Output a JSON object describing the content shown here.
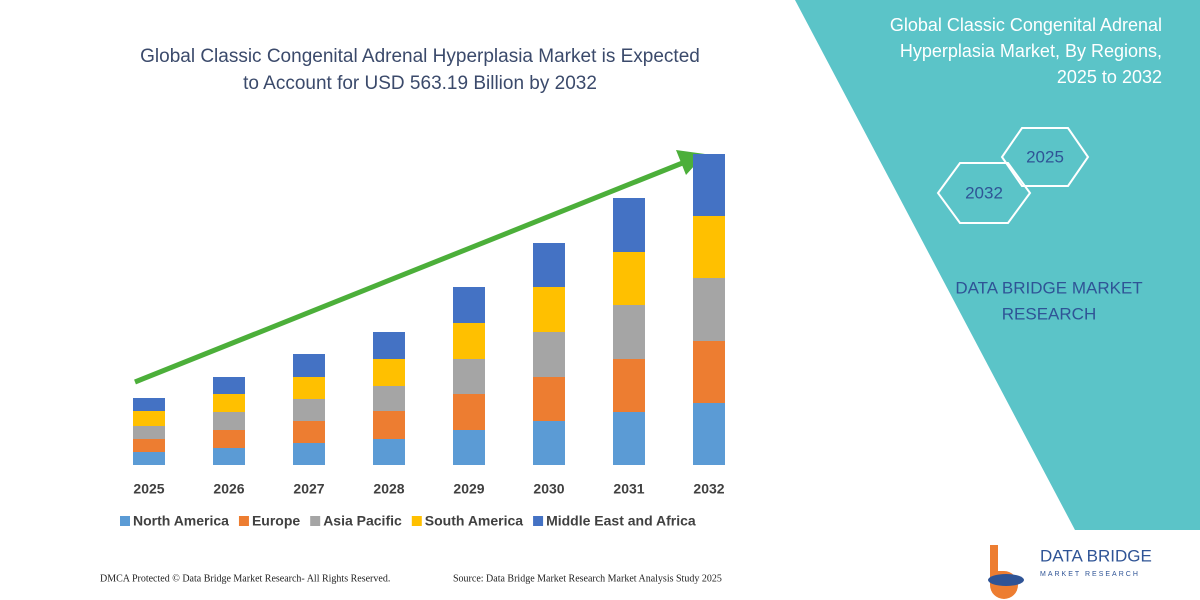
{
  "chart_data": {
    "type": "stacked-bar",
    "title": [
      "Global Classic Congenital Adrenal Hyperplasia Market is Expected",
      "to Account for USD 563.19 Billion by 2032"
    ],
    "categories": [
      "2025",
      "2026",
      "2027",
      "2028",
      "2029",
      "2030",
      "2031",
      "2032"
    ],
    "series": [
      {
        "name": "North America",
        "color": "#5b9bd5",
        "values": [
          13,
          17,
          22,
          26,
          35,
          44,
          53,
          62
        ]
      },
      {
        "name": "Europe",
        "color": "#ed7d31",
        "values": [
          13,
          18,
          22,
          28,
          36,
          44,
          53,
          62
        ]
      },
      {
        "name": "Asia Pacific",
        "color": "#a5a5a5",
        "values": [
          13,
          18,
          22,
          25,
          35,
          45,
          54,
          63
        ]
      },
      {
        "name": "South America",
        "color": "#ffc000",
        "values": [
          15,
          18,
          22,
          27,
          36,
          45,
          53,
          62
        ]
      },
      {
        "name": "Middle East and Africa",
        "color": "#4472c4",
        "values": [
          13,
          17,
          23,
          27,
          36,
          44,
          54,
          62
        ]
      }
    ],
    "ylim": [
      0,
      320
    ],
    "legend": "bottom"
  },
  "panel": {
    "title": [
      "Global Classic Congenital Adrenal",
      "Hyperplasia Market, By Regions,",
      "2025 to 2032"
    ],
    "hex_top": "2025",
    "hex_bottom": "2032",
    "brand": [
      "DATA BRIDGE MARKET",
      "RESEARCH"
    ]
  },
  "logo": {
    "name": "DATA BRIDGE",
    "tagline": "MARKET RESEARCH"
  },
  "footer": {
    "left": "DMCA Protected © Data Bridge Market Research-  All Rights Reserved.",
    "right": "Source: Data Bridge Market Research  Market Analysis Study 2025"
  }
}
